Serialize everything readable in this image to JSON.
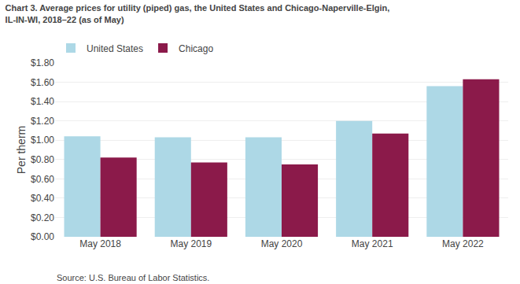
{
  "chart_data": {
    "type": "bar",
    "title": "Chart 3. Average prices for utility (piped) gas, the United States and Chicago-Naperville-Elgin,\nIL-IN-WI, 2018–22 (as of May)",
    "ylabel": "Per therm",
    "annotations": [
      "Source: U.S. Bureau of Labor Statistics."
    ],
    "categories": [
      "May 2018",
      "May 2019",
      "May 2020",
      "May 2021",
      "May 2022"
    ],
    "series": [
      {
        "name": "United States",
        "color": "#add8e6",
        "values": [
          1.04,
          1.03,
          1.03,
          1.2,
          1.56
        ]
      },
      {
        "name": "Chicago",
        "color": "#8b1a4a",
        "values": [
          0.82,
          0.77,
          0.75,
          1.07,
          1.63
        ]
      }
    ],
    "ylim": [
      0.0,
      1.8
    ],
    "yticks": [
      {
        "value": 0.0,
        "label": "$0.00"
      },
      {
        "value": 0.2,
        "label": "$0.20"
      },
      {
        "value": 0.4,
        "label": "$0.40"
      },
      {
        "value": 0.6,
        "label": "$0.60"
      },
      {
        "value": 0.8,
        "label": "$0.80"
      },
      {
        "value": 1.0,
        "label": "$1.00"
      },
      {
        "value": 1.2,
        "label": "$1.20"
      },
      {
        "value": 1.4,
        "label": "$1.40"
      },
      {
        "value": 1.6,
        "label": "$1.60"
      },
      {
        "value": 1.8,
        "label": "$1.80"
      }
    ],
    "grid": true,
    "legend": "top left"
  }
}
